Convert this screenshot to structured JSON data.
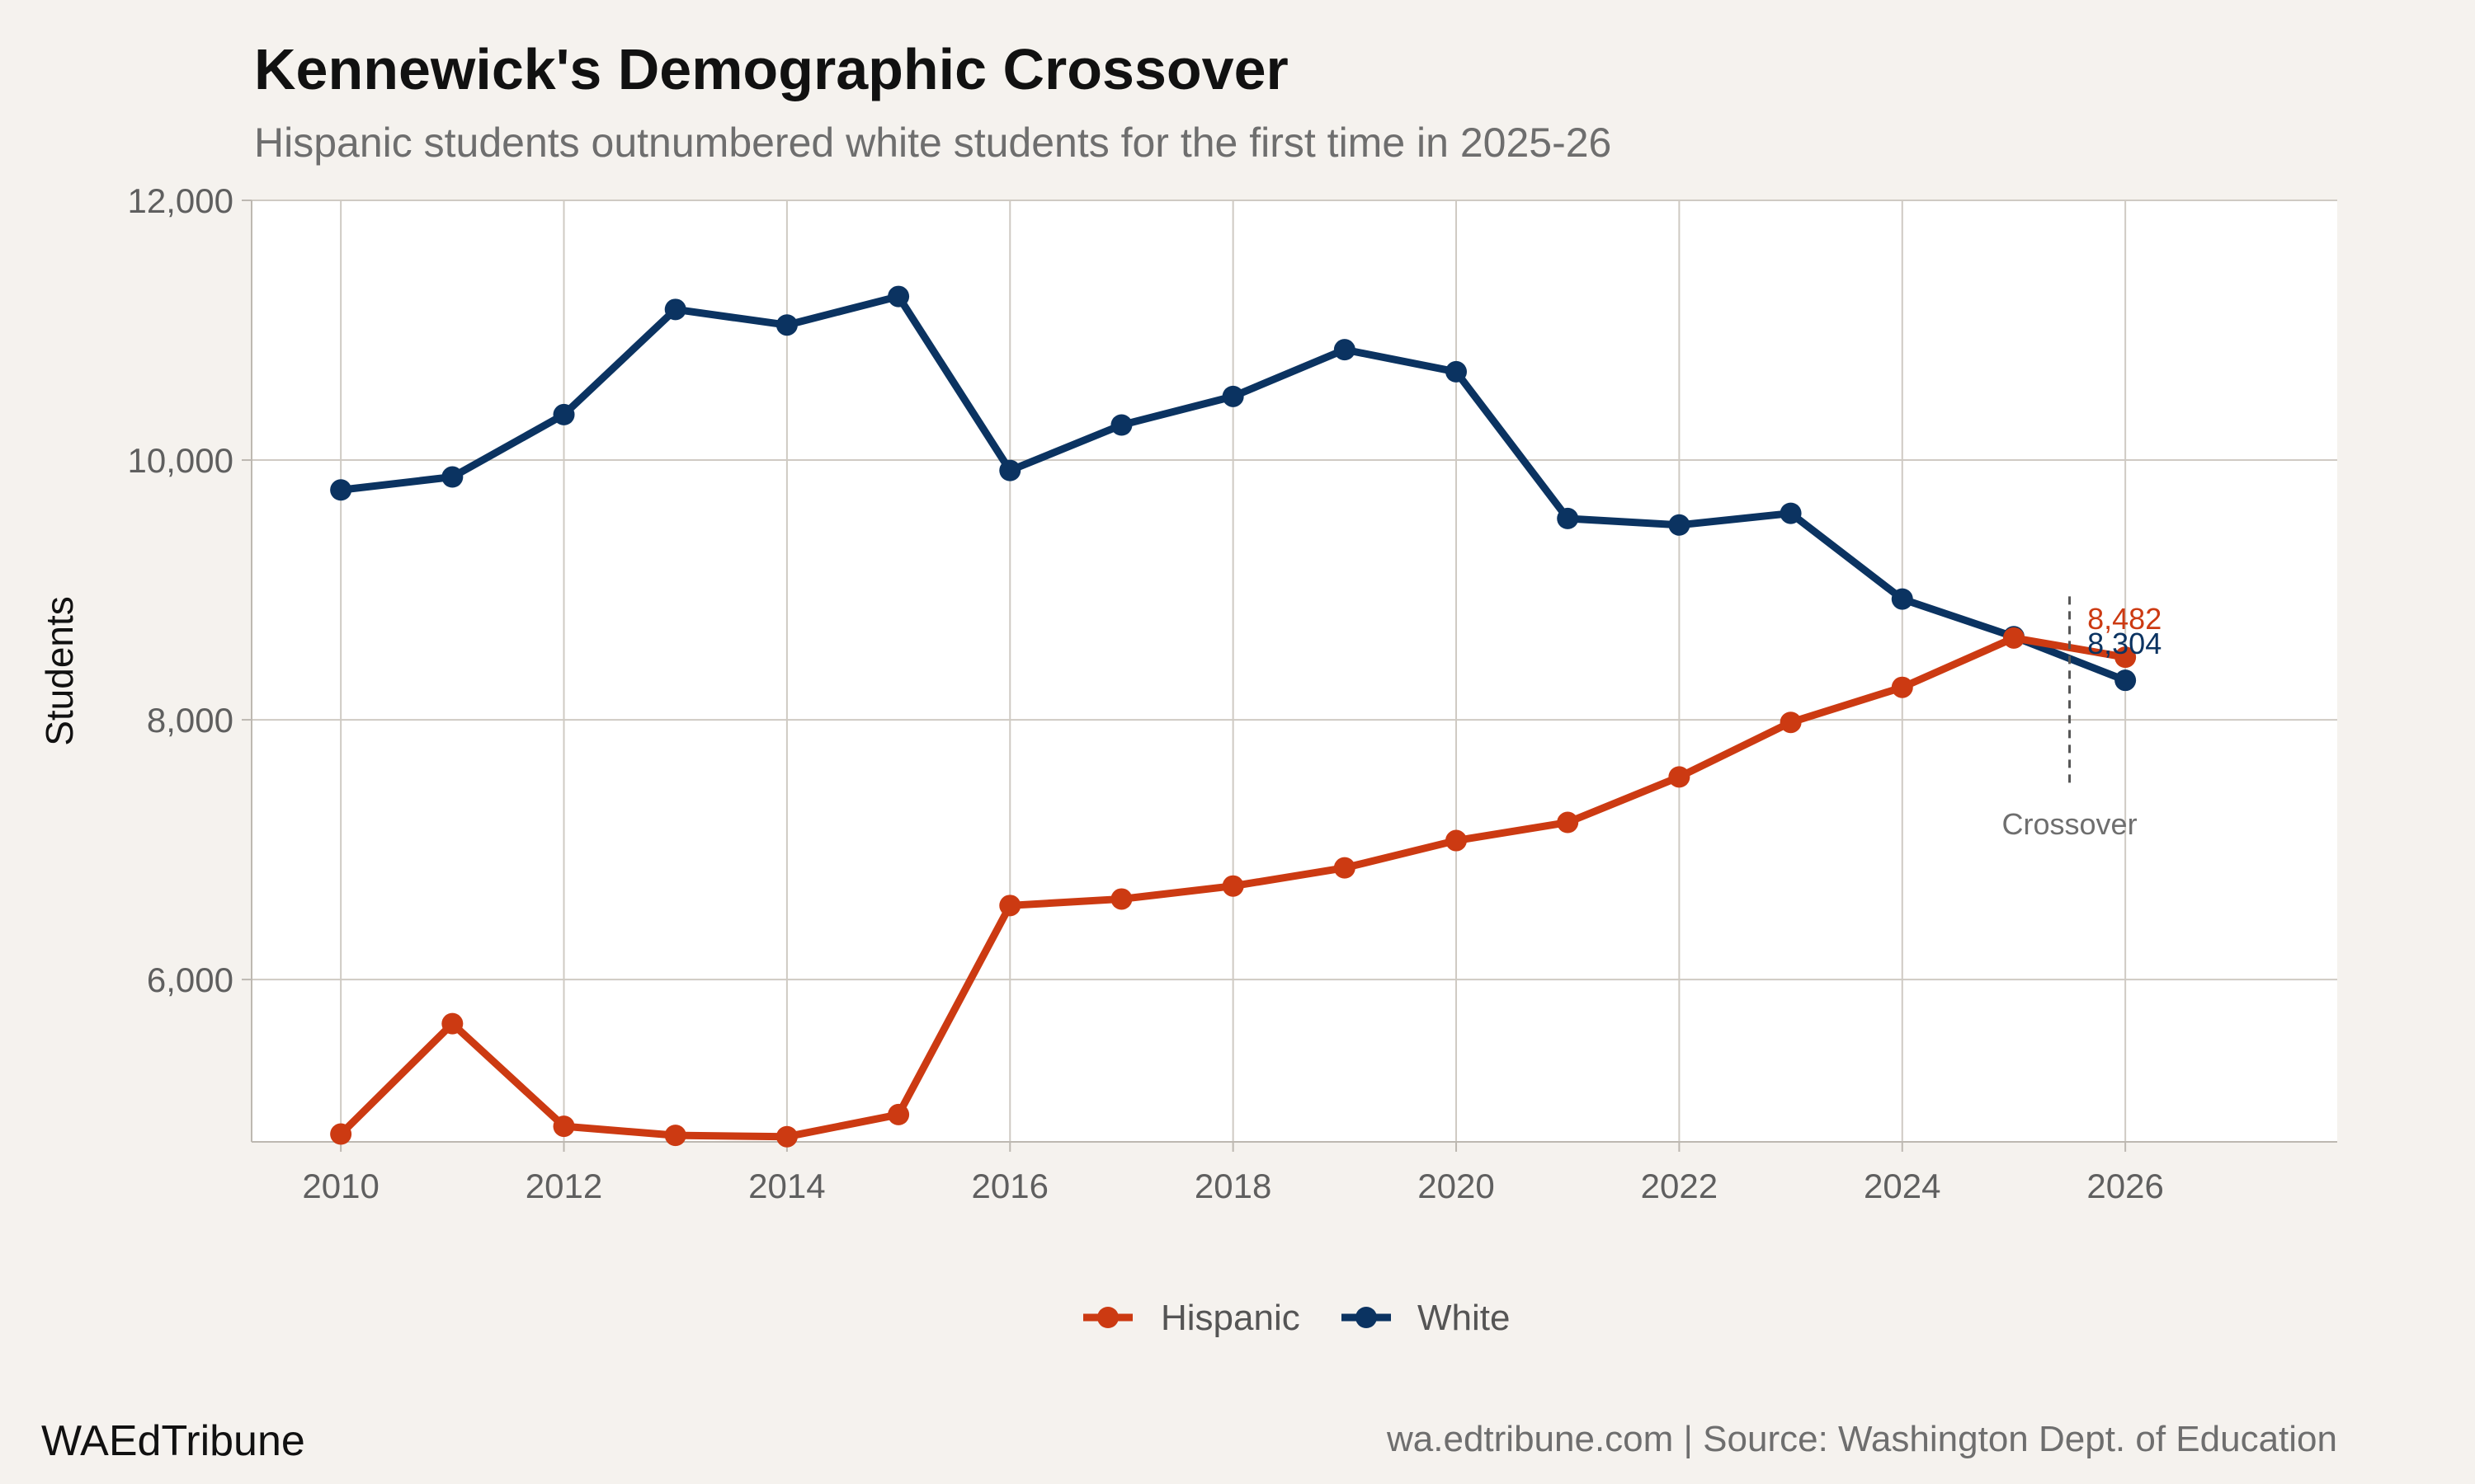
{
  "chart_data": {
    "type": "line",
    "title": "Kennewick's Demographic Crossover",
    "subtitle": "Hispanic students outnumbered white students for the first time in 2025-26",
    "xlabel": "",
    "ylabel": "Students",
    "x": [
      2010,
      2011,
      2012,
      2013,
      2014,
      2015,
      2016,
      2017,
      2018,
      2019,
      2020,
      2021,
      2022,
      2023,
      2024,
      2025,
      2026
    ],
    "series": [
      {
        "name": "Hispanic",
        "color": "#cc3a12",
        "values": [
          4810,
          5660,
          4870,
          4800,
          4790,
          4960,
          6570,
          6620,
          6720,
          6860,
          7070,
          7210,
          7560,
          7980,
          8250,
          8630,
          8482
        ]
      },
      {
        "name": "White",
        "color": "#0b3361",
        "values": [
          9770,
          9870,
          10350,
          11160,
          11040,
          11260,
          9920,
          10270,
          10490,
          10850,
          10680,
          9550,
          9500,
          9590,
          8930,
          8640,
          8304
        ]
      }
    ],
    "xlim": [
      2009.2,
      2027.9
    ],
    "ylim": [
      4750,
      12000
    ],
    "xticks": [
      2010,
      2012,
      2014,
      2016,
      2018,
      2020,
      2022,
      2024,
      2026
    ],
    "yticks": [
      6000,
      8000,
      10000,
      12000
    ],
    "ytick_labels": [
      "6,000",
      "8,000",
      "10,000",
      "12,000"
    ],
    "grid": true,
    "legend_position": "bottom",
    "annotations": {
      "crossover_label": "Crossover",
      "crossover_x": 2025.5,
      "crossover_y_range": [
        7500,
        8950
      ],
      "hispanic_end_label": "8,482",
      "white_end_label": "8,304"
    }
  },
  "footer": {
    "brand": "WAEdTribune",
    "source": "wa.edtribune.com | Source: Washington Dept. of Education"
  }
}
